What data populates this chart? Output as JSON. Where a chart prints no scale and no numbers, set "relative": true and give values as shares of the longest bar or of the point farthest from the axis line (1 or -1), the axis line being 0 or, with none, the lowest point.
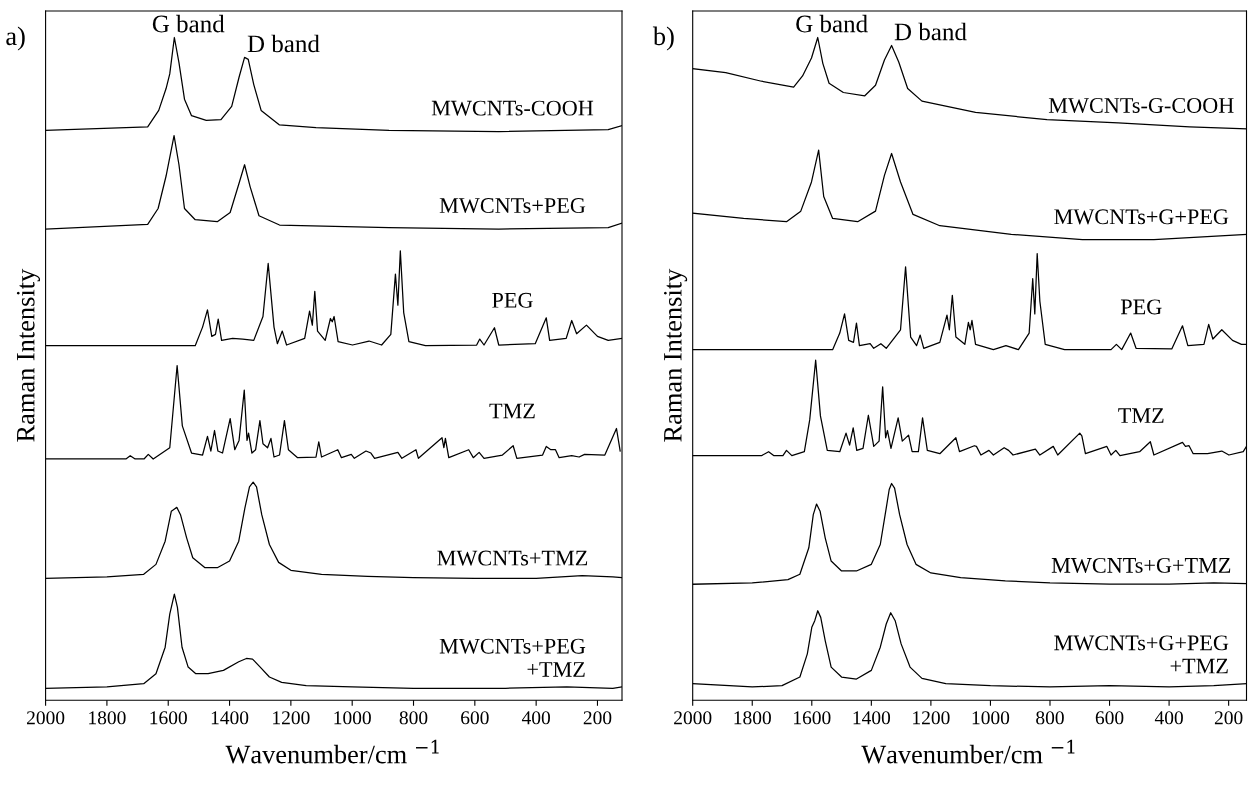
{
  "chart_data": [
    {
      "type": "line",
      "title": "a)",
      "xlabel": "Wavenumber/cm $^{−1}$",
      "ylabel": "Raman Intensity",
      "relative": true,
      "tick_labels": "x",
      "xlim": [
        2000,
        120
      ],
      "xticks": [
        2000,
        1800,
        1600,
        1400,
        1200,
        1000,
        800,
        600,
        400,
        200
      ],
      "annotations": [
        {
          "text": "G band",
          "x": 1580,
          "y": 1.0
        },
        {
          "text": "D band",
          "x": 1351,
          "y": 0.97
        }
      ],
      "series": [
        {
          "name": "MWCNTs-COOH",
          "color": "#000000",
          "x": [
            2000,
            1667,
            1631,
            1607,
            1595,
            1580,
            1565,
            1547,
            1524,
            1476,
            1428,
            1393,
            1369,
            1351,
            1339,
            1321,
            1297,
            1237,
            1118,
            880,
            522,
            165,
            120
          ],
          "values": [
            0.86,
            0.865,
            0.89,
            0.923,
            0.945,
            1.0,
            0.962,
            0.907,
            0.882,
            0.875,
            0.876,
            0.896,
            0.94,
            0.97,
            0.967,
            0.929,
            0.89,
            0.868,
            0.864,
            0.86,
            0.858,
            0.861,
            0.867
          ]
        },
        {
          "name": "MWCNTs+PEG",
          "color": "#000000",
          "x": [
            2000,
            1667,
            1633,
            1607,
            1581,
            1565,
            1547,
            1512,
            1440,
            1398,
            1369,
            1351,
            1333,
            1304,
            1237,
            880,
            522,
            165,
            120
          ],
          "values": [
            0.711,
            0.718,
            0.742,
            0.791,
            0.852,
            0.808,
            0.742,
            0.725,
            0.722,
            0.736,
            0.78,
            0.808,
            0.775,
            0.731,
            0.717,
            0.713,
            0.711,
            0.713,
            0.72
          ]
        },
        {
          "name": "PEG",
          "color": "#000000",
          "x": [
            2000,
            1512,
            1488,
            1472,
            1458,
            1446,
            1437,
            1426,
            1390,
            1357,
            1321,
            1291,
            1274,
            1255,
            1244,
            1228,
            1214,
            1155,
            1139,
            1130,
            1122,
            1113,
            1088,
            1071,
            1065,
            1059,
            1046,
            999,
            945,
            904,
            874,
            859,
            851,
            843,
            832,
            815,
            761,
            594,
            584,
            570,
            536,
            522,
            403,
            367,
            356,
            302,
            284,
            268,
            236,
            200,
            165,
            120
          ],
          "values": [
            0.535,
            0.535,
            0.563,
            0.589,
            0.549,
            0.552,
            0.575,
            0.543,
            0.546,
            0.545,
            0.543,
            0.579,
            0.659,
            0.563,
            0.538,
            0.557,
            0.536,
            0.546,
            0.587,
            0.566,
            0.617,
            0.557,
            0.543,
            0.576,
            0.571,
            0.579,
            0.541,
            0.536,
            0.542,
            0.536,
            0.552,
            0.643,
            0.596,
            0.678,
            0.585,
            0.541,
            0.535,
            0.536,
            0.545,
            0.536,
            0.562,
            0.536,
            0.538,
            0.577,
            0.543,
            0.546,
            0.573,
            0.553,
            0.566,
            0.549,
            0.543,
            0.546
          ]
        },
        {
          "name": "TMZ",
          "color": "#000000",
          "x": [
            2000,
            1738,
            1724,
            1708,
            1679,
            1665,
            1649,
            1595,
            1571,
            1554,
            1524,
            1488,
            1472,
            1461,
            1449,
            1438,
            1423,
            1398,
            1383,
            1369,
            1352,
            1343,
            1338,
            1327,
            1315,
            1301,
            1291,
            1276,
            1265,
            1255,
            1237,
            1221,
            1208,
            1178,
            1118,
            1109,
            1100,
            1047,
            1035,
            1003,
            993,
            955,
            939,
            927,
            851,
            838,
            792,
            784,
            707,
            701,
            696,
            685,
            620,
            605,
            586,
            570,
            510,
            475,
            463,
            379,
            367,
            352,
            337,
            325,
            284,
            260,
            242,
            176,
            138,
            126
          ],
          "values": [
            0.364,
            0.364,
            0.369,
            0.364,
            0.364,
            0.371,
            0.364,
            0.381,
            0.505,
            0.414,
            0.373,
            0.37,
            0.398,
            0.376,
            0.407,
            0.376,
            0.373,
            0.425,
            0.378,
            0.392,
            0.468,
            0.392,
            0.403,
            0.373,
            0.378,
            0.422,
            0.387,
            0.381,
            0.395,
            0.367,
            0.37,
            0.422,
            0.378,
            0.366,
            0.367,
            0.39,
            0.367,
            0.378,
            0.366,
            0.371,
            0.365,
            0.376,
            0.373,
            0.365,
            0.374,
            0.365,
            0.378,
            0.365,
            0.396,
            0.381,
            0.395,
            0.366,
            0.378,
            0.366,
            0.374,
            0.365,
            0.37,
            0.384,
            0.365,
            0.37,
            0.383,
            0.378,
            0.378,
            0.366,
            0.369,
            0.367,
            0.371,
            0.37,
            0.41,
            0.376
          ]
        },
        {
          "name": "MWCNTs+TMZ",
          "color": "#000000",
          "x": [
            2000,
            1800,
            1680,
            1640,
            1610,
            1590,
            1572,
            1560,
            1540,
            1520,
            1480,
            1440,
            1400,
            1370,
            1350,
            1335,
            1323,
            1312,
            1295,
            1270,
            1240,
            1200,
            1100,
            950,
            800,
            600,
            400,
            250,
            150,
            120
          ],
          "values": [
            0.184,
            0.186,
            0.19,
            0.205,
            0.24,
            0.285,
            0.291,
            0.28,
            0.245,
            0.215,
            0.2,
            0.2,
            0.21,
            0.24,
            0.29,
            0.322,
            0.329,
            0.322,
            0.28,
            0.235,
            0.208,
            0.196,
            0.19,
            0.187,
            0.185,
            0.184,
            0.184,
            0.188,
            0.186,
            0.185
          ]
        },
        {
          "name": "MWCNTs+PEG\n+TMZ",
          "color": "#000000",
          "x": [
            2000,
            1800,
            1680,
            1640,
            1610,
            1595,
            1580,
            1570,
            1555,
            1535,
            1510,
            1470,
            1420,
            1370,
            1345,
            1325,
            1300,
            1270,
            1230,
            1150,
            1000,
            800,
            500,
            300,
            150,
            120
          ],
          "values": [
            0.018,
            0.02,
            0.025,
            0.04,
            0.08,
            0.13,
            0.16,
            0.14,
            0.08,
            0.05,
            0.04,
            0.04,
            0.045,
            0.058,
            0.063,
            0.062,
            0.05,
            0.035,
            0.027,
            0.022,
            0.02,
            0.018,
            0.018,
            0.02,
            0.018,
            0.02
          ]
        }
      ]
    },
    {
      "type": "line",
      "title": "b)",
      "xlabel": "Wavenumber/cm $^{−1}$",
      "ylabel": "Raman Intensity",
      "relative": true,
      "tick_labels": "x",
      "xlim": [
        2000,
        140
      ],
      "xticks": [
        2000,
        1800,
        1600,
        1400,
        1200,
        1000,
        800,
        600,
        400,
        200
      ],
      "annotations": [
        {
          "text": "G band",
          "x": 1580,
          "y": 1.0
        },
        {
          "text": "D band",
          "x": 1332,
          "y": 0.988
        }
      ],
      "series": [
        {
          "name": "MWCNTs-G-COOH",
          "color": "#000000",
          "x": [
            2000,
            1889,
            1769,
            1661,
            1631,
            1601,
            1580,
            1563,
            1542,
            1494,
            1422,
            1386,
            1356,
            1332,
            1308,
            1278,
            1230,
            1050,
            810,
            571,
            331,
            140
          ],
          "values": [
            0.953,
            0.947,
            0.934,
            0.925,
            0.942,
            0.969,
            1.0,
            0.961,
            0.931,
            0.917,
            0.912,
            0.928,
            0.966,
            0.988,
            0.963,
            0.923,
            0.904,
            0.887,
            0.876,
            0.871,
            0.865,
            0.862
          ]
        },
        {
          "name": "MWCNTs+G+PEG",
          "color": "#000000",
          "x": [
            2000,
            1829,
            1685,
            1637,
            1601,
            1577,
            1560,
            1530,
            1446,
            1386,
            1356,
            1332,
            1302,
            1260,
            1170,
            930,
            691,
            451,
            140
          ],
          "values": [
            0.735,
            0.727,
            0.722,
            0.738,
            0.782,
            0.83,
            0.76,
            0.727,
            0.722,
            0.738,
            0.792,
            0.825,
            0.782,
            0.733,
            0.716,
            0.703,
            0.695,
            0.695,
            0.703
          ]
        },
        {
          "name": "PEG",
          "color": "#000000",
          "x": [
            2000,
            1530,
            1506,
            1490,
            1476,
            1460,
            1450,
            1440,
            1404,
            1392,
            1368,
            1350,
            1302,
            1285,
            1268,
            1248,
            1236,
            1224,
            1170,
            1146,
            1138,
            1128,
            1116,
            1086,
            1074,
            1068,
            1062,
            1050,
            990,
            948,
            906,
            870,
            858,
            851,
            843,
            834,
            816,
            751,
            595,
            577,
            559,
            529,
            511,
            391,
            355,
            337,
            283,
            267,
            253,
            223,
            187,
            157,
            140
          ],
          "values": [
            0.529,
            0.529,
            0.554,
            0.583,
            0.543,
            0.54,
            0.569,
            0.535,
            0.538,
            0.531,
            0.538,
            0.531,
            0.559,
            0.654,
            0.548,
            0.535,
            0.551,
            0.531,
            0.54,
            0.581,
            0.559,
            0.611,
            0.548,
            0.537,
            0.57,
            0.559,
            0.573,
            0.537,
            0.529,
            0.535,
            0.529,
            0.554,
            0.636,
            0.583,
            0.674,
            0.602,
            0.537,
            0.529,
            0.529,
            0.537,
            0.529,
            0.554,
            0.531,
            0.53,
            0.565,
            0.535,
            0.537,
            0.567,
            0.545,
            0.559,
            0.543,
            0.537,
            0.537
          ]
        },
        {
          "name": "TMZ",
          "color": "#000000",
          "x": [
            2000,
            1769,
            1745,
            1727,
            1697,
            1685,
            1667,
            1625,
            1607,
            1587,
            1571,
            1548,
            1506,
            1485,
            1473,
            1461,
            1449,
            1428,
            1410,
            1392,
            1374,
            1362,
            1352,
            1346,
            1334,
            1310,
            1296,
            1275,
            1263,
            1242,
            1228,
            1212,
            1170,
            1116,
            1104,
            1054,
            1047,
            1032,
            1005,
            990,
            954,
            939,
            924,
            849,
            834,
            789,
            774,
            700,
            693,
            681,
            609,
            595,
            579,
            565,
            499,
            463,
            451,
            355,
            345,
            333,
            319,
            271,
            247,
            223,
            199,
            151,
            140
          ],
          "values": [
            0.369,
            0.369,
            0.375,
            0.369,
            0.369,
            0.377,
            0.369,
            0.375,
            0.423,
            0.513,
            0.429,
            0.377,
            0.375,
            0.403,
            0.385,
            0.411,
            0.377,
            0.38,
            0.43,
            0.383,
            0.391,
            0.473,
            0.396,
            0.407,
            0.38,
            0.426,
            0.391,
            0.4,
            0.375,
            0.375,
            0.426,
            0.377,
            0.372,
            0.396,
            0.375,
            0.384,
            0.383,
            0.37,
            0.377,
            0.37,
            0.381,
            0.377,
            0.37,
            0.379,
            0.37,
            0.383,
            0.37,
            0.403,
            0.399,
            0.372,
            0.383,
            0.37,
            0.377,
            0.369,
            0.375,
            0.39,
            0.37,
            0.389,
            0.383,
            0.384,
            0.372,
            0.372,
            0.374,
            0.376,
            0.37,
            0.375,
            0.383
          ]
        },
        {
          "name": "MWCNTs+G+TMZ",
          "color": "#000000",
          "x": [
            2000,
            1800,
            1680,
            1640,
            1610,
            1595,
            1584,
            1572,
            1555,
            1535,
            1500,
            1450,
            1400,
            1370,
            1350,
            1340,
            1332,
            1322,
            1305,
            1280,
            1250,
            1200,
            1100,
            950,
            800,
            600,
            400,
            250,
            140
          ],
          "values": [
            0.175,
            0.177,
            0.182,
            0.19,
            0.23,
            0.28,
            0.296,
            0.285,
            0.245,
            0.21,
            0.195,
            0.195,
            0.205,
            0.235,
            0.29,
            0.318,
            0.327,
            0.32,
            0.28,
            0.235,
            0.205,
            0.192,
            0.185,
            0.18,
            0.177,
            0.175,
            0.175,
            0.177,
            0.176
          ]
        },
        {
          "name": "MWCNTs+G+PEG\n+TMZ",
          "color": "#000000",
          "x": [
            2000,
            1800,
            1700,
            1640,
            1615,
            1600,
            1590,
            1580,
            1570,
            1555,
            1535,
            1500,
            1450,
            1400,
            1370,
            1350,
            1335,
            1320,
            1300,
            1270,
            1230,
            1150,
            1000,
            800,
            600,
            400,
            250,
            140
          ],
          "values": [
            0.025,
            0.02,
            0.022,
            0.035,
            0.07,
            0.11,
            0.12,
            0.135,
            0.125,
            0.09,
            0.05,
            0.035,
            0.032,
            0.045,
            0.08,
            0.115,
            0.132,
            0.12,
            0.085,
            0.05,
            0.033,
            0.025,
            0.022,
            0.02,
            0.022,
            0.02,
            0.022,
            0.025
          ]
        }
      ]
    }
  ]
}
